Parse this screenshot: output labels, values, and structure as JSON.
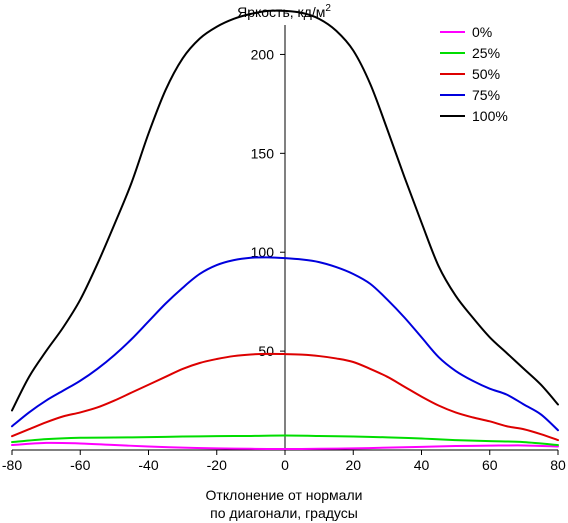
{
  "chart_data": {
    "type": "line",
    "title": "Яркость, кд/м",
    "title_superscript": "2",
    "xlabel_line1": "Отклонение от нормали",
    "xlabel_line2": "по диагонали, градусы",
    "ylabel": "",
    "xlim": [
      -80,
      80
    ],
    "ylim": [
      0,
      225
    ],
    "x_ticks": [
      -80,
      -60,
      -40,
      -20,
      0,
      20,
      40,
      60,
      80
    ],
    "y_ticks": [
      50,
      100,
      150,
      200
    ],
    "legend_position": "top-right",
    "grid": false,
    "series": [
      {
        "name": "0%",
        "color": "#ff00ff",
        "x": [
          -80,
          -70,
          -60,
          -50,
          -40,
          -30,
          -20,
          -10,
          0,
          10,
          20,
          30,
          40,
          50,
          60,
          70,
          80
        ],
        "y": [
          2.5,
          3.6,
          3.3,
          2.5,
          1.8,
          1.2,
          0.8,
          0.6,
          0.5,
          0.6,
          0.8,
          1.2,
          1.6,
          2.0,
          2.2,
          2.3,
          1.8
        ]
      },
      {
        "name": "25%",
        "color": "#00dd00",
        "x": [
          -80,
          -70,
          -60,
          -50,
          -40,
          -30,
          -20,
          -10,
          0,
          10,
          20,
          30,
          40,
          50,
          60,
          70,
          80
        ],
        "y": [
          4,
          5.5,
          6.2,
          6.3,
          6.5,
          6.8,
          7.0,
          7.1,
          7.3,
          7.1,
          6.8,
          6.4,
          5.8,
          5.0,
          4.5,
          4.0,
          2.5
        ]
      },
      {
        "name": "50%",
        "color": "#dd0000",
        "x": [
          -80,
          -75,
          -70,
          -65,
          -60,
          -55,
          -50,
          -45,
          -40,
          -35,
          -30,
          -25,
          -20,
          -15,
          -10,
          -5,
          0,
          5,
          10,
          15,
          20,
          25,
          30,
          35,
          40,
          45,
          50,
          55,
          60,
          65,
          70,
          75,
          80
        ],
        "y": [
          7,
          10.5,
          14,
          17,
          19,
          21.5,
          25,
          29,
          33,
          37,
          41,
          44,
          46,
          47.5,
          48.3,
          48.6,
          48.5,
          48.2,
          47.5,
          46.3,
          44.5,
          41,
          37,
          32,
          27,
          22.5,
          19,
          16.5,
          14.5,
          12,
          10.5,
          8,
          5
        ]
      },
      {
        "name": "75%",
        "color": "#0000dd",
        "x": [
          -80,
          -75,
          -70,
          -65,
          -60,
          -55,
          -50,
          -45,
          -40,
          -35,
          -30,
          -25,
          -20,
          -15,
          -10,
          -5,
          0,
          5,
          10,
          15,
          20,
          25,
          30,
          35,
          40,
          45,
          50,
          55,
          60,
          65,
          70,
          75,
          80
        ],
        "y": [
          12,
          19,
          25,
          30,
          35,
          41,
          48,
          56,
          65,
          74,
          82,
          89,
          93.5,
          96,
          97.2,
          97.4,
          97,
          96.3,
          95,
          92.5,
          89,
          84,
          76,
          67,
          57,
          47,
          40,
          35,
          31,
          28,
          23,
          18,
          10
        ]
      },
      {
        "name": "100%",
        "color": "#000000",
        "x": [
          -80,
          -75,
          -70,
          -65,
          -60,
          -55,
          -50,
          -45,
          -40,
          -35,
          -30,
          -25,
          -20,
          -15,
          -10,
          -5,
          0,
          5,
          10,
          15,
          20,
          25,
          30,
          35,
          40,
          45,
          50,
          55,
          60,
          65,
          70,
          75,
          80
        ],
        "y": [
          20,
          37,
          50,
          62,
          76,
          94,
          114,
          135,
          160,
          182,
          198,
          208,
          214,
          218,
          220.5,
          222,
          222,
          221,
          218,
          212,
          202,
          185,
          162,
          138,
          115,
          93,
          78,
          67,
          57,
          49,
          41,
          33,
          23
        ]
      }
    ]
  }
}
